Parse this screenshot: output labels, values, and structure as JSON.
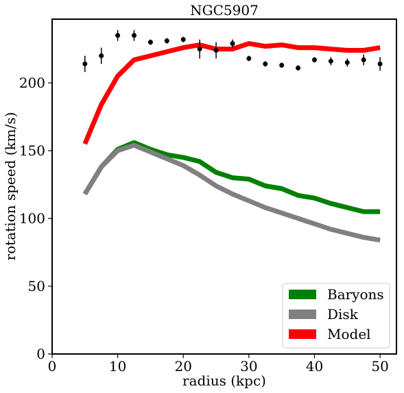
{
  "chart_data": {
    "type": "line",
    "title": "NGC5907",
    "xlabel": "radius (kpc)",
    "ylabel": "rotation speed (km/s)",
    "xlim": [
      0,
      52.5
    ],
    "ylim": [
      0,
      247
    ],
    "xticks": [
      0,
      10,
      20,
      30,
      40,
      50
    ],
    "yticks": [
      0,
      50,
      100,
      150,
      200
    ],
    "grid": false,
    "legend": "bottom-right",
    "series": [
      {
        "name": "Baryons",
        "color": "#008000",
        "x": [
          5.0,
          7.5,
          10.0,
          12.5,
          15.0,
          17.5,
          20.0,
          22.5,
          25.0,
          27.5,
          30.0,
          32.5,
          35.0,
          37.5,
          40.0,
          42.5,
          45.0,
          47.5,
          50.0
        ],
        "values": [
          118,
          138,
          151,
          156,
          151,
          147,
          145,
          142,
          134,
          130,
          129,
          124,
          122,
          117,
          115,
          111,
          108,
          105,
          105
        ]
      },
      {
        "name": "Disk",
        "color": "#808080",
        "x": [
          5.0,
          7.5,
          10.0,
          12.5,
          15.0,
          17.5,
          20.0,
          22.5,
          25.0,
          27.5,
          30.0,
          32.5,
          35.0,
          37.5,
          40.0,
          42.5,
          45.0,
          47.5,
          50.0
        ],
        "values": [
          118,
          138,
          150,
          154,
          149,
          144,
          139,
          132,
          124,
          118,
          113,
          108,
          104,
          100,
          96,
          92,
          89,
          86,
          84
        ]
      },
      {
        "name": "Model",
        "color": "#ff0000",
        "x": [
          5.0,
          7.5,
          10.0,
          12.5,
          15.0,
          17.5,
          20.0,
          22.5,
          25.0,
          27.5,
          30.0,
          32.5,
          35.0,
          37.5,
          40.0,
          42.5,
          45.0,
          47.5,
          50.0
        ],
        "values": [
          155,
          184,
          205,
          217,
          220,
          223,
          226,
          228,
          225,
          225,
          229,
          227,
          228,
          226,
          226,
          225,
          224,
          224,
          226
        ]
      }
    ],
    "observed": {
      "color": "#000000",
      "points": [
        {
          "x": 5.0,
          "y": 214,
          "err": 6
        },
        {
          "x": 7.5,
          "y": 220,
          "err": 6
        },
        {
          "x": 10.0,
          "y": 235,
          "err": 4
        },
        {
          "x": 12.5,
          "y": 235,
          "err": 4
        },
        {
          "x": 15.0,
          "y": 230,
          "err": 2
        },
        {
          "x": 17.5,
          "y": 231,
          "err": 2
        },
        {
          "x": 20.0,
          "y": 232,
          "err": 2
        },
        {
          "x": 22.5,
          "y": 225,
          "err": 7
        },
        {
          "x": 25.0,
          "y": 224,
          "err": 6
        },
        {
          "x": 27.5,
          "y": 229,
          "err": 3
        },
        {
          "x": 30.0,
          "y": 218,
          "err": 2
        },
        {
          "x": 32.5,
          "y": 214,
          "err": 2
        },
        {
          "x": 35.0,
          "y": 213,
          "err": 2
        },
        {
          "x": 37.5,
          "y": 211,
          "err": 2
        },
        {
          "x": 40.0,
          "y": 217,
          "err": 2
        },
        {
          "x": 42.5,
          "y": 216,
          "err": 3
        },
        {
          "x": 45.0,
          "y": 215,
          "err": 3
        },
        {
          "x": 47.5,
          "y": 217,
          "err": 4
        },
        {
          "x": 50.0,
          "y": 214,
          "err": 5
        }
      ]
    }
  }
}
